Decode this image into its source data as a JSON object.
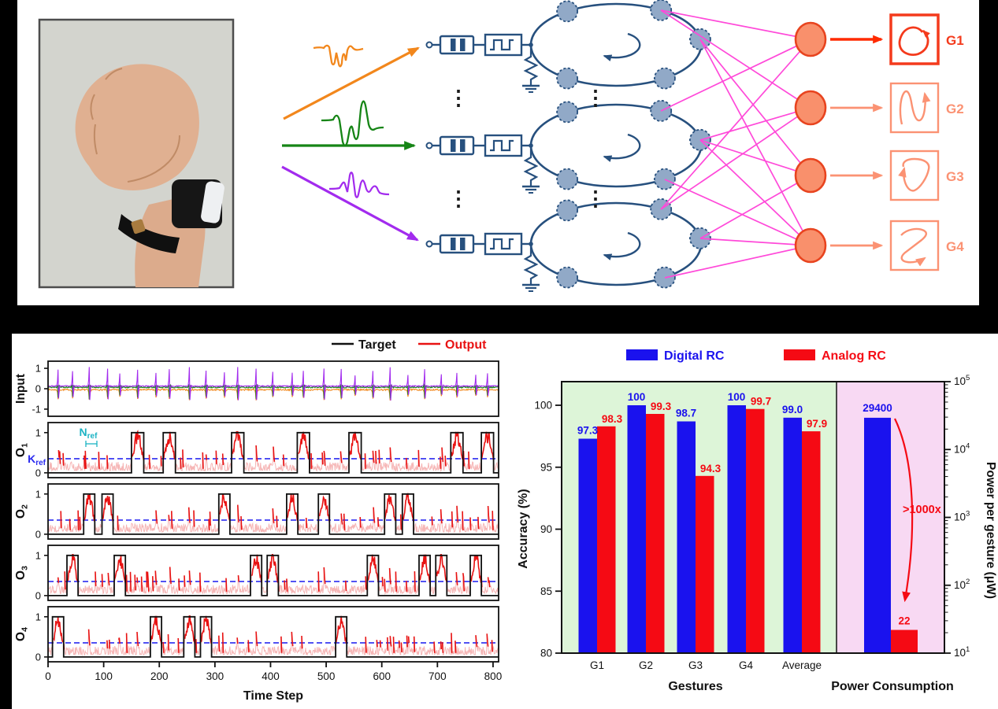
{
  "colors": {
    "digital_blue": "#1a12ee",
    "analog_red": "#f50a14",
    "target_black": "#111111",
    "output_red": "#e81212",
    "output_pink": "#f6b6b6",
    "threshold_blue": "#2b2bf0",
    "nref_cyan": "#1bb3c4",
    "input_purple": "#a22bee",
    "input_green": "#168516",
    "input_orange": "#f2871c",
    "diagram_navy": "#27507e",
    "node_fill": "#91a9c7",
    "connection_magenta": "#ff49d9",
    "neuron_fill": "#f9906c",
    "neuron_stroke": "#e8441f",
    "g1_red": "#f43a1c",
    "gesture_salmon": "#fb9273"
  },
  "icons": {
    "vdots": "⋮"
  },
  "top_diagram": {
    "gestures": [
      {
        "label": "G1"
      },
      {
        "label": "G2"
      },
      {
        "label": "G3"
      },
      {
        "label": "G4"
      }
    ]
  },
  "chart_data": [
    {
      "type": "line",
      "title": "Gesture classification traces",
      "xlabel": "Time Step",
      "x_range": [
        0,
        810
      ],
      "x_ticks": [
        0,
        100,
        200,
        300,
        400,
        500,
        600,
        700,
        800
      ],
      "legend": [
        {
          "label": "Target",
          "color": "#111111"
        },
        {
          "label": "Output",
          "color": "#e81212"
        }
      ],
      "threshold": {
        "label_main": "K",
        "label_sub": "ref",
        "value": 0.35
      },
      "window_annotation": {
        "label_main": "N",
        "label_sub": "ref"
      },
      "panels": [
        {
          "label": "Input",
          "sub": "",
          "y_ticks": [
            "1",
            "0",
            "-1"
          ]
        },
        {
          "label": "O",
          "sub": "1",
          "y_ticks": [
            "1",
            "0"
          ],
          "target_pulses": [
            [
              150,
              172
            ],
            [
              207,
              229
            ],
            [
              330,
              352
            ],
            [
              448,
              470
            ],
            [
              541,
              563
            ],
            [
              724,
              746
            ],
            [
              779,
              801
            ]
          ]
        },
        {
          "label": "O",
          "sub": "2",
          "y_ticks": [
            "1",
            "0"
          ],
          "target_pulses": [
            [
              64,
              84
            ],
            [
              97,
              117
            ],
            [
              307,
              327
            ],
            [
              429,
              449
            ],
            [
              486,
              506
            ],
            [
              605,
              625
            ],
            [
              637,
              657
            ]
          ]
        },
        {
          "label": "O",
          "sub": "3",
          "y_ticks": [
            "1",
            "0"
          ],
          "target_pulses": [
            [
              34,
              54
            ],
            [
              119,
              139
            ],
            [
              364,
              384
            ],
            [
              394,
              414
            ],
            [
              574,
              594
            ],
            [
              667,
              687
            ],
            [
              697,
              717
            ],
            [
              759,
              779
            ]
          ]
        },
        {
          "label": "O",
          "sub": "4",
          "y_ticks": [
            "1",
            "0"
          ],
          "target_pulses": [
            [
              8,
              28
            ],
            [
              184,
              204
            ],
            [
              244,
              264
            ],
            [
              274,
              294
            ],
            [
              517,
              537
            ]
          ]
        }
      ]
    },
    {
      "type": "bar",
      "categories": [
        "G1",
        "G2",
        "G3",
        "G4",
        "Average"
      ],
      "series": [
        {
          "name": "Digital RC",
          "color": "#1a12ee",
          "values": [
            97.3,
            100,
            98.7,
            100,
            99.0
          ],
          "value_labels": [
            "97.3",
            "100",
            "98.7",
            "100",
            "99.0"
          ]
        },
        {
          "name": "Analog RC",
          "color": "#f50a14",
          "values": [
            98.3,
            99.3,
            94.3,
            99.7,
            97.9
          ],
          "value_labels": [
            "98.3",
            "99.3",
            "94.3",
            "99.7",
            "97.9"
          ]
        }
      ],
      "ylabel_left": "Accuracy (%)",
      "ylim_left": [
        80,
        102
      ],
      "yticks_left": [
        80,
        85,
        90,
        95,
        100
      ],
      "xlabel": "Gestures",
      "power_section": {
        "label": "Power Consumption",
        "values": [
          {
            "name": "Digital RC",
            "value": 29400,
            "value_label": "29400"
          },
          {
            "name": "Analog RC",
            "value": 22,
            "value_label": "22"
          }
        ],
        "annotation": ">1000x"
      },
      "ylabel_right": "Power per gesture (μW)",
      "right_axis_exponents": [
        1,
        2,
        3,
        4,
        5
      ],
      "bg_green": "#ddf5d8",
      "bg_pink": "#f8d9f3"
    }
  ]
}
